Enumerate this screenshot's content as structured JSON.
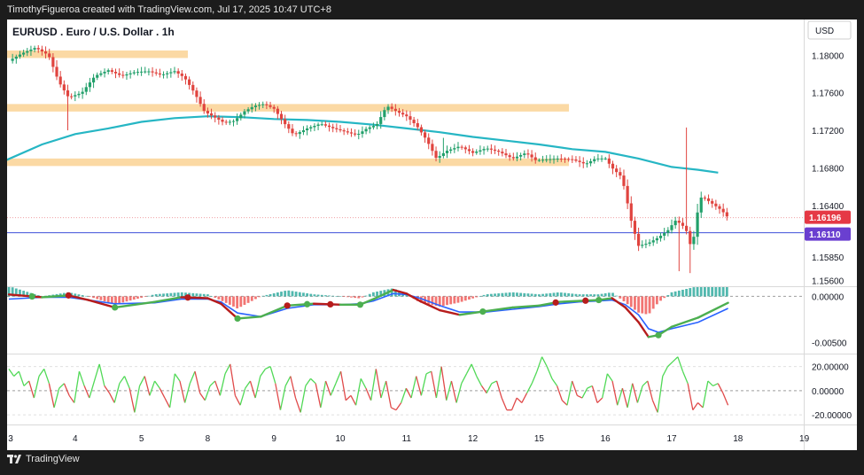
{
  "header": {
    "credit": "TimothyFigueroa created with TradingView.com, Jul 17, 2025 10:47 UTC+8"
  },
  "footer": {
    "brand": "TradingView"
  },
  "colors": {
    "ema": "#26b6c4",
    "zone": "#fbd9a4",
    "level": "#3f51d9",
    "last_price_bg": "#e53945",
    "level_bg": "#6a3fd0",
    "up": "#22a06b",
    "down": "#e0443f",
    "osc_red": "#b71c1c",
    "osc_green": "#4caf50",
    "osc_blue": "#2962ff",
    "rsi_green": "#51d957",
    "rsi_red": "#e04a4a"
  },
  "chart_data": [
    {
      "type": "candlestick",
      "title": "EURUSD . Euro / U.S. Dollar . 1h",
      "currency": "USD",
      "xlabel": "",
      "ylabel": "",
      "x_ticks": [
        "3",
        "4",
        "5",
        "8",
        "9",
        "10",
        "11",
        "12",
        "15",
        "16",
        "17",
        "18",
        "19"
      ],
      "y_ticks": [
        "1.18000",
        "1.17600",
        "1.17200",
        "1.16800",
        "1.16400",
        "1.15850",
        "1.15600"
      ],
      "ylim": [
        1.1554,
        1.1838
      ],
      "close_path": [
        [
          0,
          1.1794
        ],
        [
          0.2,
          1.1802
        ],
        [
          0.4,
          1.1808
        ],
        [
          0.6,
          1.18
        ],
        [
          0.75,
          1.1772
        ],
        [
          0.9,
          1.1755
        ],
        [
          1.1,
          1.176
        ],
        [
          1.3,
          1.1778
        ],
        [
          1.5,
          1.1784
        ],
        [
          1.7,
          1.1778
        ],
        [
          1.9,
          1.1782
        ],
        [
          2.1,
          1.1783
        ],
        [
          2.3,
          1.1779
        ],
        [
          2.5,
          1.1783
        ],
        [
          2.65,
          1.1776
        ],
        [
          2.8,
          1.176
        ],
        [
          2.95,
          1.174
        ],
        [
          3.1,
          1.1734
        ],
        [
          3.25,
          1.1728
        ],
        [
          3.4,
          1.173
        ],
        [
          3.55,
          1.174
        ],
        [
          3.7,
          1.1746
        ],
        [
          3.85,
          1.1748
        ],
        [
          4.0,
          1.1743
        ],
        [
          4.15,
          1.1728
        ],
        [
          4.3,
          1.1715
        ],
        [
          4.5,
          1.1722
        ],
        [
          4.7,
          1.1727
        ],
        [
          4.9,
          1.1722
        ],
        [
          5.1,
          1.1718
        ],
        [
          5.25,
          1.1715
        ],
        [
          5.4,
          1.1722
        ],
        [
          5.55,
          1.1726
        ],
        [
          5.7,
          1.1746
        ],
        [
          5.85,
          1.174
        ],
        [
          6.0,
          1.1735
        ],
        [
          6.15,
          1.1725
        ],
        [
          6.3,
          1.171
        ],
        [
          6.45,
          1.169
        ],
        [
          6.6,
          1.1698
        ],
        [
          6.8,
          1.1703
        ],
        [
          7.0,
          1.1696
        ],
        [
          7.2,
          1.1701
        ],
        [
          7.4,
          1.1697
        ],
        [
          7.6,
          1.169
        ],
        [
          7.8,
          1.1696
        ],
        [
          7.95,
          1.1688
        ],
        [
          8.1,
          1.1689
        ],
        [
          8.3,
          1.169
        ],
        [
          8.5,
          1.1689
        ],
        [
          8.7,
          1.1684
        ],
        [
          8.85,
          1.169
        ],
        [
          9.0,
          1.169
        ],
        [
          9.1,
          1.168
        ],
        [
          9.25,
          1.167
        ],
        [
          9.4,
          1.162
        ],
        [
          9.5,
          1.1597
        ],
        [
          9.65,
          1.16
        ],
        [
          9.8,
          1.1606
        ],
        [
          9.95,
          1.1614
        ],
        [
          10.05,
          1.1624
        ],
        [
          10.15,
          1.162
        ],
        [
          10.25,
          1.161
        ],
        [
          10.3,
          1.159
        ],
        [
          10.38,
          1.163
        ],
        [
          10.45,
          1.165
        ],
        [
          10.55,
          1.1645
        ],
        [
          10.65,
          1.164
        ],
        [
          10.75,
          1.1635
        ],
        [
          10.85,
          1.1627
        ]
      ],
      "high_spikes": [
        [
          0.9,
          1.172
        ],
        [
          6.55,
          1.1712
        ],
        [
          10.12,
          1.157
        ],
        [
          10.22,
          1.1723
        ],
        [
          10.28,
          1.1568
        ]
      ],
      "ema_200": [
        [
          -0.05,
          1.1688
        ],
        [
          0.5,
          1.1705
        ],
        [
          1.0,
          1.1716
        ],
        [
          1.5,
          1.1722
        ],
        [
          2.0,
          1.1729
        ],
        [
          2.5,
          1.1733
        ],
        [
          3.0,
          1.1735
        ],
        [
          3.5,
          1.1734
        ],
        [
          4.0,
          1.1732
        ],
        [
          4.5,
          1.1731
        ],
        [
          5.0,
          1.1729
        ],
        [
          5.5,
          1.1726
        ],
        [
          6.0,
          1.1722
        ],
        [
          6.5,
          1.1718
        ],
        [
          7.0,
          1.1713
        ],
        [
          7.5,
          1.1709
        ],
        [
          8.0,
          1.1705
        ],
        [
          8.5,
          1.17
        ],
        [
          9.0,
          1.1697
        ],
        [
          9.5,
          1.169
        ],
        [
          10.0,
          1.1681
        ],
        [
          10.4,
          1.1678
        ],
        [
          10.7,
          1.1675
        ]
      ],
      "resistance_zones": [
        {
          "x_range": [
            -0.05,
            2.7
          ],
          "y_range": [
            1.1805,
            1.1797
          ]
        },
        {
          "x_range": [
            -0.05,
            8.45
          ],
          "y_range": [
            1.1748,
            1.174
          ]
        },
        {
          "x_range": [
            -0.05,
            8.45
          ],
          "y_range": [
            1.169,
            1.1682
          ]
        }
      ],
      "horizontal_level": 1.1611,
      "price_labels": [
        "1.16196",
        "1.16110"
      ]
    },
    {
      "type": "line",
      "xlabel": "",
      "ylabel": "",
      "y_ticks": [
        "0.00000",
        "-0.00500"
      ],
      "ylim": [
        -0.0062,
        0.001
      ],
      "line_a": [
        [
          0,
          0.0002
        ],
        [
          0.5,
          -0.0001
        ],
        [
          0.9,
          0.0001
        ],
        [
          1.2,
          -0.0004
        ],
        [
          1.6,
          -0.0012
        ],
        [
          2.2,
          -0.0006
        ],
        [
          2.6,
          -0.0001
        ],
        [
          3.0,
          -0.0002
        ],
        [
          3.2,
          -0.0008
        ],
        [
          3.45,
          -0.0024
        ],
        [
          3.8,
          -0.0022
        ],
        [
          4.2,
          -0.001
        ],
        [
          4.6,
          -0.0008
        ],
        [
          5.0,
          -0.0009
        ],
        [
          5.3,
          -0.0009
        ],
        [
          5.5,
          -0.0003
        ],
        [
          5.8,
          0.0007
        ],
        [
          6.0,
          0.0003
        ],
        [
          6.2,
          -0.0005
        ],
        [
          6.5,
          -0.0015
        ],
        [
          6.8,
          -0.002
        ],
        [
          7.2,
          -0.0016
        ],
        [
          7.6,
          -0.0012
        ],
        [
          8.0,
          -0.001
        ],
        [
          8.3,
          -0.0006
        ],
        [
          8.6,
          -0.0005
        ],
        [
          8.9,
          -0.0004
        ],
        [
          9.1,
          -0.0002
        ],
        [
          9.3,
          -0.0012
        ],
        [
          9.5,
          -0.0028
        ],
        [
          9.65,
          -0.0044
        ],
        [
          9.8,
          -0.0042
        ],
        [
          10.0,
          -0.0033
        ],
        [
          10.4,
          -0.0023
        ],
        [
          10.85,
          -0.0007
        ]
      ],
      "line_b": [
        [
          0,
          -0.0003
        ],
        [
          0.5,
          -0.0001
        ],
        [
          0.9,
          -0.0001
        ],
        [
          1.2,
          -0.0004
        ],
        [
          1.6,
          -0.0008
        ],
        [
          2.2,
          -0.0007
        ],
        [
          2.6,
          -0.0003
        ],
        [
          3.0,
          -0.0003
        ],
        [
          3.2,
          -0.0006
        ],
        [
          3.45,
          -0.0018
        ],
        [
          3.8,
          -0.0022
        ],
        [
          4.2,
          -0.0013
        ],
        [
          4.6,
          -0.0009
        ],
        [
          5.0,
          -0.0009
        ],
        [
          5.3,
          -0.0008
        ],
        [
          5.5,
          -0.0005
        ],
        [
          5.8,
          0.0003
        ],
        [
          6.0,
          0.0002
        ],
        [
          6.2,
          -0.0002
        ],
        [
          6.5,
          -0.001
        ],
        [
          6.8,
          -0.0017
        ],
        [
          7.2,
          -0.0017
        ],
        [
          7.6,
          -0.0014
        ],
        [
          8.0,
          -0.0011
        ],
        [
          8.3,
          -0.0008
        ],
        [
          8.6,
          -0.0006
        ],
        [
          8.9,
          -0.0005
        ],
        [
          9.1,
          -0.0004
        ],
        [
          9.3,
          -0.0009
        ],
        [
          9.5,
          -0.002
        ],
        [
          9.65,
          -0.0035
        ],
        [
          9.8,
          -0.0039
        ],
        [
          10.0,
          -0.0035
        ],
        [
          10.4,
          -0.0028
        ],
        [
          10.85,
          -0.0013
        ]
      ],
      "red_markers": [
        0.9,
        2.7,
        4.2,
        4.85,
        8.25,
        8.7
      ],
      "green_markers": [
        0.35,
        1.6,
        3.45,
        4.5,
        5.3,
        7.15,
        8.9,
        9.8
      ]
    },
    {
      "type": "line",
      "xlabel": "",
      "ylabel": "",
      "y_ticks": [
        "20.00000",
        "0.00000",
        "-20.00000"
      ],
      "ylim": [
        -28,
        30
      ],
      "values": [
        18,
        12,
        16,
        4,
        8,
        -6,
        12,
        18,
        6,
        -14,
        2,
        6,
        -4,
        -10,
        16,
        4,
        -6,
        8,
        22,
        4,
        -2,
        -10,
        6,
        12,
        2,
        -18,
        4,
        12,
        -4,
        8,
        2,
        -6,
        -14,
        14,
        8,
        -10,
        6,
        16,
        -2,
        -8,
        4,
        8,
        -4,
        14,
        22,
        -4,
        -12,
        2,
        8,
        -6,
        12,
        18,
        20,
        6,
        -16,
        4,
        12,
        -6,
        -18,
        4,
        10,
        6,
        -14,
        8,
        -4,
        6,
        16,
        -8,
        -4,
        -12,
        10,
        2,
        -8,
        18,
        -6,
        8,
        -14,
        -16,
        -10,
        2,
        -6,
        12,
        -4,
        14,
        16,
        -6,
        20,
        -8,
        8,
        -10,
        6,
        14,
        22,
        12,
        4,
        -2,
        6,
        8,
        -6,
        -16,
        -16,
        -6,
        -10,
        -2,
        6,
        16,
        28,
        20,
        10,
        4,
        -8,
        -12,
        8,
        -4,
        -6,
        2,
        4,
        -10,
        -6,
        14,
        8,
        -12,
        2,
        -14,
        6,
        -10,
        4,
        8,
        -8,
        -18,
        12,
        20,
        24,
        28,
        16,
        6,
        -16,
        -10,
        -14,
        8,
        4,
        6,
        -2,
        -12
      ]
    }
  ]
}
